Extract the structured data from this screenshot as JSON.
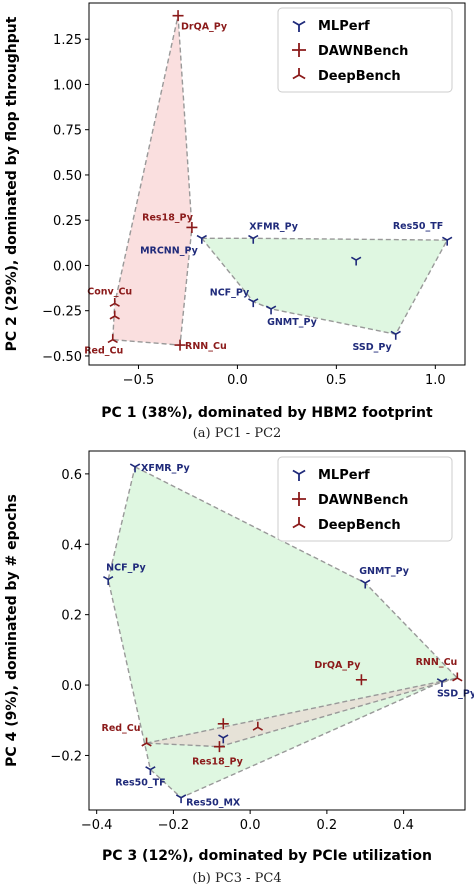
{
  "chart_data": [
    {
      "type": "scatter",
      "xlabel": "PC 1 (38%), dominated by HBM2 footprint",
      "ylabel": "PC 2 (29%), dominated by flop throughput",
      "caption": "(a) PC1 - PC2",
      "xlim": [
        -0.75,
        1.15
      ],
      "ylim": [
        -0.55,
        1.45
      ],
      "xticks": [
        -0.5,
        0.0,
        0.5,
        1.0
      ],
      "xtick_labels": [
        "−0.5",
        "0.0",
        "0.5",
        "1.0"
      ],
      "yticks": [
        -0.5,
        -0.25,
        0.0,
        0.25,
        0.5,
        0.75,
        1.0,
        1.25
      ],
      "ytick_labels": [
        "−0.50",
        "−0.25",
        "0.00",
        "0.25",
        "0.50",
        "0.75",
        "1.00",
        "1.25"
      ],
      "legend_position": "top-right",
      "series": [
        {
          "name": "MLPerf",
          "marker": "tri_down",
          "color": "#1f2a7a",
          "points": [
            {
              "label": "XFMR_Py",
              "x": 0.08,
              "y": 0.15
            },
            {
              "label": "Res50_TF",
              "x": 1.06,
              "y": 0.14
            },
            {
              "label": "MRCNN_Py",
              "x": -0.18,
              "y": 0.15
            },
            {
              "label": "",
              "x": 0.6,
              "y": 0.03
            },
            {
              "label": "NCF_Py",
              "x": 0.08,
              "y": -0.2
            },
            {
              "label": "GNMT_Py",
              "x": 0.17,
              "y": -0.24
            },
            {
              "label": "SSD_Py",
              "x": 0.8,
              "y": -0.38
            }
          ],
          "hull_fill": "#dff7e2"
        },
        {
          "name": "DAWNBench",
          "marker": "plus",
          "color": "#8b1a1a",
          "points": [
            {
              "label": "DrQA_Py",
              "x": -0.3,
              "y": 1.38
            },
            {
              "label": "Res18_Py",
              "x": -0.23,
              "y": 0.21
            },
            {
              "label": "RNN_Cu",
              "x": -0.29,
              "y": -0.44
            }
          ],
          "hull_fill": "#fadbdb"
        },
        {
          "name": "DeepBench",
          "marker": "tri_up",
          "color": "#8b1a1a",
          "points": [
            {
              "label": "Conv_Cu",
              "x": -0.62,
              "y": -0.21
            },
            {
              "label": "",
              "x": -0.62,
              "y": -0.28
            },
            {
              "label": "Red_Cu",
              "x": -0.63,
              "y": -0.41
            }
          ]
        }
      ],
      "hulls": [
        {
          "series": "MLPerf",
          "points": [
            [
              -0.18,
              0.15
            ],
            [
              0.08,
              0.15
            ],
            [
              1.06,
              0.14
            ],
            [
              0.8,
              -0.38
            ],
            [
              0.17,
              -0.24
            ],
            [
              0.08,
              -0.2
            ]
          ]
        },
        {
          "series": "DAWNBench+DeepBench",
          "points": [
            [
              -0.3,
              1.38
            ],
            [
              -0.23,
              0.21
            ],
            [
              -0.29,
              -0.44
            ],
            [
              -0.63,
              -0.41
            ],
            [
              -0.62,
              -0.21
            ]
          ]
        }
      ]
    },
    {
      "type": "scatter",
      "xlabel": "PC 3 (12%), dominated by PCIe utilization",
      "ylabel": "PC 4 (9%), dominated by # epochs",
      "caption": "(b) PC3 - PC4",
      "xlim": [
        -0.42,
        0.56
      ],
      "ylim": [
        -0.355,
        0.665
      ],
      "xticks": [
        -0.4,
        -0.2,
        0.0,
        0.2,
        0.4
      ],
      "xtick_labels": [
        "−0.4",
        "−0.2",
        "0.0",
        "0.2",
        "0.4"
      ],
      "yticks": [
        -0.2,
        0.0,
        0.2,
        0.4,
        0.6
      ],
      "ytick_labels": [
        "−0.2",
        "0.0",
        "0.2",
        "0.4",
        "0.6"
      ],
      "legend_position": "top-right",
      "series": [
        {
          "name": "MLPerf",
          "marker": "tri_down",
          "color": "#1f2a7a",
          "points": [
            {
              "label": "XFMR_Py",
              "x": -0.3,
              "y": 0.62
            },
            {
              "label": "NCF_Py",
              "x": -0.37,
              "y": 0.3
            },
            {
              "label": "GNMT_Py",
              "x": 0.3,
              "y": 0.29
            },
            {
              "label": "SSD_Py",
              "x": 0.5,
              "y": 0.01
            },
            {
              "label": "Res50_TF",
              "x": -0.26,
              "y": -0.24
            },
            {
              "label": "Res50_MX",
              "x": -0.18,
              "y": -0.32
            },
            {
              "label": "",
              "x": -0.07,
              "y": -0.15
            }
          ],
          "hull_fill": "#dff7e2"
        },
        {
          "name": "DAWNBench",
          "marker": "plus",
          "color": "#8b1a1a",
          "points": [
            {
              "label": "DrQA_Py",
              "x": 0.29,
              "y": 0.015
            },
            {
              "label": "Res18_Py",
              "x": -0.08,
              "y": -0.175
            },
            {
              "label": "",
              "x": -0.07,
              "y": -0.11
            }
          ]
        },
        {
          "name": "DeepBench",
          "marker": "tri_up",
          "color": "#8b1a1a",
          "points": [
            {
              "label": "RNN_Cu",
              "x": 0.54,
              "y": 0.02
            },
            {
              "label": "Red_Cu",
              "x": -0.27,
              "y": -0.165
            },
            {
              "label": "",
              "x": 0.02,
              "y": -0.12
            }
          ]
        }
      ],
      "hulls": [
        {
          "series": "MLPerf+DeepBench",
          "points": [
            [
              -0.3,
              0.62
            ],
            [
              0.3,
              0.29
            ],
            [
              0.54,
              0.02
            ],
            [
              0.5,
              0.01
            ],
            [
              -0.18,
              -0.32
            ],
            [
              -0.26,
              -0.24
            ],
            [
              -0.37,
              0.3
            ]
          ]
        },
        {
          "series": "DAWNBench+DeepBench",
          "points": [
            [
              -0.27,
              -0.165
            ],
            [
              0.54,
              0.02
            ],
            [
              -0.08,
              -0.175
            ]
          ]
        }
      ]
    }
  ]
}
